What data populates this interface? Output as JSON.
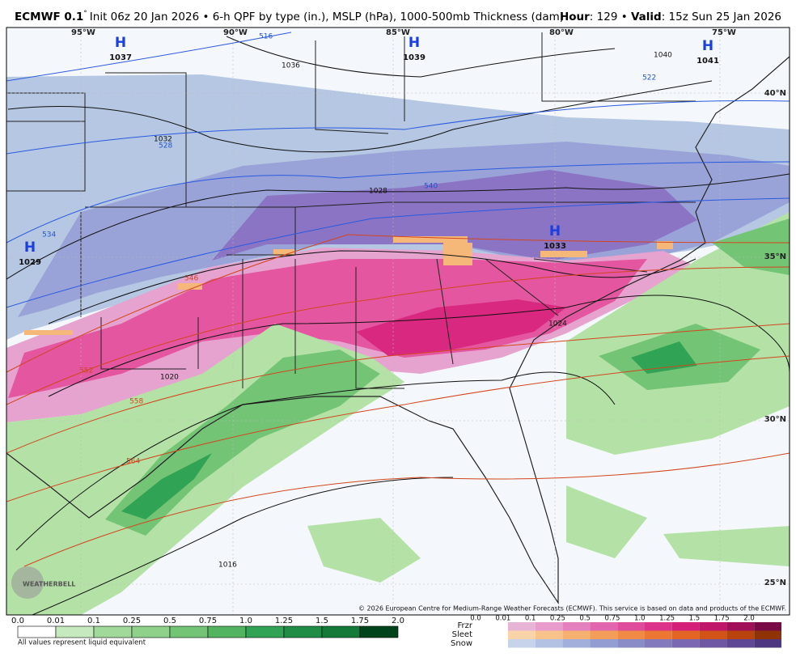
{
  "header": {
    "model": "ECMWF 0.1",
    "degree": "°",
    "description": "Init 06z 20 Jan 2026 • 6-h QPF by type (in.), MSLP (hPa), 1000-500mb Thickness (dam)",
    "hour_label": "Hour",
    "hour": ": 129 • ",
    "valid_label": "Valid",
    "valid": ": 15z Sun 25 Jan 2026"
  },
  "map": {
    "longitudes": [
      "95°W",
      "90°W",
      "85°W",
      "80°W",
      "75°W"
    ],
    "latitudes": [
      "40°N",
      "35°N",
      "30°N",
      "25°N"
    ],
    "highs": [
      {
        "symbol": "H",
        "pressure": "1037"
      },
      {
        "symbol": "H",
        "pressure": "1039"
      },
      {
        "symbol": "H",
        "pressure": "1041"
      },
      {
        "symbol": "H",
        "pressure": "1029"
      },
      {
        "symbol": "H",
        "pressure": "1033"
      }
    ],
    "isobar_labels": [
      "1036",
      "1040",
      "1032",
      "1028",
      "1024",
      "1020",
      "1016"
    ],
    "thickness_labels": [
      "516",
      "522",
      "528",
      "534",
      "540",
      "546",
      "552",
      "558",
      "564"
    ],
    "copyright": "© 2026 European Centre for Medium-Range Weather Forecasts (ECMWF). This service is based on data and products of the ECMWF.",
    "watermark": "WEATHERBELL"
  },
  "legend": {
    "qpf_ticks": [
      "0.0",
      "0.01",
      "0.1",
      "0.25",
      "0.5",
      "0.75",
      "1.0",
      "1.25",
      "1.5",
      "1.75",
      "2.0"
    ],
    "note": "All values represent liquid equivalent",
    "ptype_rows": [
      "Frzr",
      "Sleet",
      "Snow"
    ],
    "ptype_ticks": [
      "0.0",
      "0.01",
      "0.1",
      "0.25",
      "0.5",
      "0.75",
      "1.0",
      "1.25",
      "1.5",
      "1.75",
      "2.0"
    ]
  }
}
